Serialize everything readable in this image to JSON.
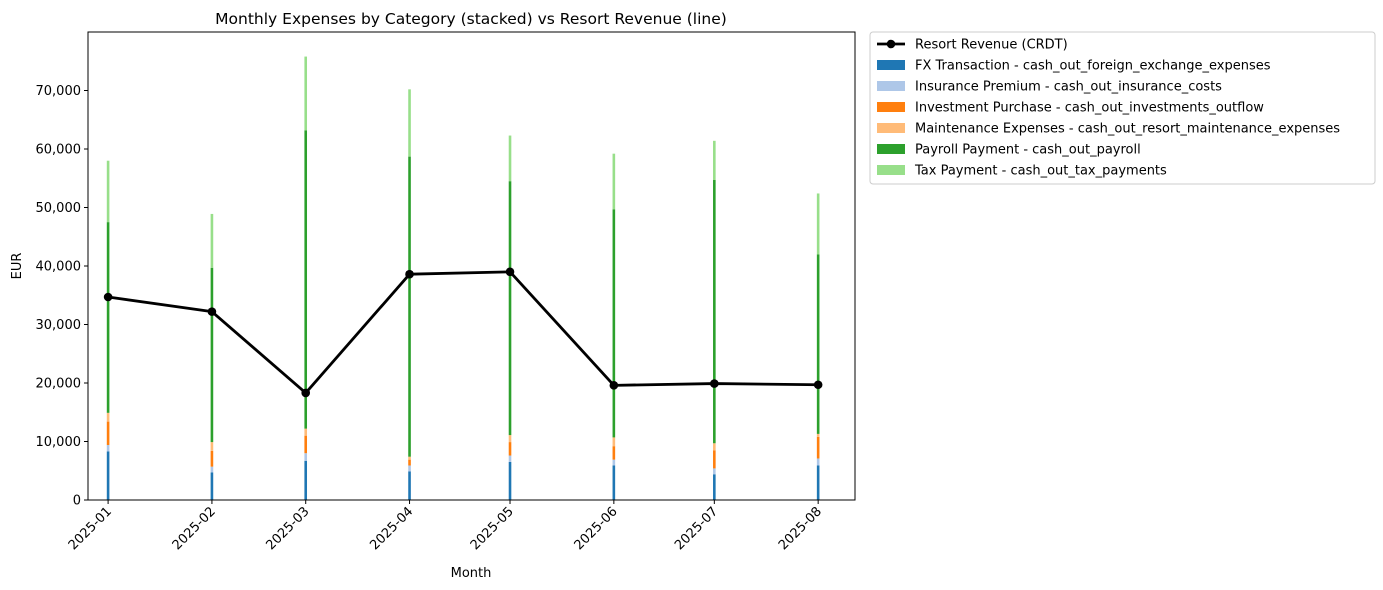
{
  "chart_data": {
    "type": "bar",
    "title": "Monthly Expenses by Category (stacked) vs Resort Revenue (line)",
    "xlabel": "Month",
    "ylabel": "EUR",
    "ylim": [
      0,
      80000
    ],
    "yticks": [
      0,
      10000,
      20000,
      30000,
      40000,
      50000,
      60000,
      70000
    ],
    "ytick_labels": [
      "0",
      "10,000",
      "20,000",
      "30,000",
      "40,000",
      "50,000",
      "60,000",
      "70,000"
    ],
    "x": [
      "2025-01-01",
      "2025-02-01",
      "2025-03-01",
      "2025-04-01",
      "2025-05-01",
      "2025-06-01",
      "2025-07-01",
      "2025-08-01"
    ],
    "xlim": [
      "2024-12-26",
      "2025-08-12"
    ],
    "categories": [
      "2025-01",
      "2025-02",
      "2025-03",
      "2025-04",
      "2025-05",
      "2025-06",
      "2025-07",
      "2025-08"
    ],
    "legend_position": "outside top-right",
    "series": [
      {
        "name": "FX Transaction - cash_out_foreign_exchange_expenses",
        "color": "#1f77b4",
        "values": [
          8300,
          4700,
          6700,
          4900,
          6500,
          5900,
          4400,
          5900
        ]
      },
      {
        "name": "Insurance Premium - cash_out_insurance_costs",
        "color": "#aec7e8",
        "values": [
          1100,
          1000,
          1300,
          1000,
          1100,
          1000,
          1000,
          1200
        ]
      },
      {
        "name": "Investment Purchase - cash_out_investments_outflow",
        "color": "#ff7f0e",
        "values": [
          4000,
          2700,
          3000,
          1000,
          2300,
          2300,
          3100,
          3700
        ]
      },
      {
        "name": "Maintenance Expenses - cash_out_resort_maintenance_expenses",
        "color": "#ffbb78",
        "values": [
          1500,
          1500,
          1200,
          500,
          1200,
          1500,
          1200,
          500
        ]
      },
      {
        "name": "Payroll Payment - cash_out_payroll",
        "color": "#2ca02c",
        "values": [
          32600,
          29800,
          51000,
          51300,
          43400,
          39000,
          45000,
          30700
        ]
      },
      {
        "name": "Tax Payment - cash_out_tax_payments",
        "color": "#98df8a",
        "values": [
          10500,
          9200,
          12600,
          11500,
          7800,
          9500,
          6700,
          10400
        ]
      }
    ],
    "line": {
      "name": "Resort Revenue (CRDT)",
      "color": "#000000",
      "values": [
        34700,
        32200,
        18300,
        38600,
        39000,
        19600,
        19900,
        19700
      ]
    }
  }
}
